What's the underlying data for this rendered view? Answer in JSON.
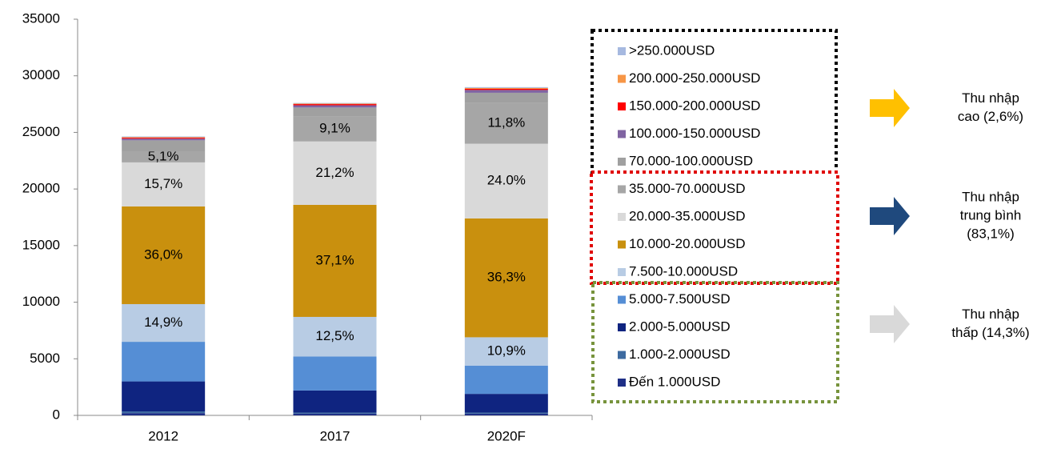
{
  "chart_data": {
    "type": "stacked_bar",
    "categories": [
      "2012",
      "2017",
      "2020F"
    ],
    "ylim": [
      0,
      35000
    ],
    "yticks": [
      0,
      5000,
      10000,
      15000,
      20000,
      25000,
      30000,
      35000
    ],
    "series": [
      {
        "name": "Đến 1.000USD",
        "color": "#1f2f86",
        "values": [
          200,
          150,
          150
        ]
      },
      {
        "name": "1.000-2.000USD",
        "color": "#3d6aa0",
        "values": [
          150,
          100,
          100
        ]
      },
      {
        "name": "2.000-5.000USD",
        "color": "#0f2480",
        "values": [
          2650,
          1950,
          1650
        ]
      },
      {
        "name": "5.000-7.500USD",
        "color": "#558ed5",
        "values": [
          3500,
          3000,
          2500
        ]
      },
      {
        "name": "7.500-10.000USD",
        "color": "#b8cce4",
        "values": [
          3330,
          3500,
          2500
        ],
        "labels": [
          "14,9%",
          "12,5%",
          "10,9%"
        ]
      },
      {
        "name": "10.000-20.000USD",
        "color": "#c9900e",
        "values": [
          8630,
          9900,
          10500
        ],
        "labels": [
          "36,0%",
          "37,1%",
          "36,3%"
        ]
      },
      {
        "name": "20.000-35.000USD",
        "color": "#d9d9d9",
        "values": [
          3890,
          5600,
          6600
        ],
        "labels": [
          "15,7%",
          "21,2%",
          "24.0%"
        ]
      },
      {
        "name": "35.000-70.000USD",
        "color": "#a6a6a6",
        "values": [
          950,
          2200,
          3600
        ],
        "labels": [
          "5,1%",
          "9,1%",
          "11,8%"
        ]
      },
      {
        "name": "70.000-100.000USD",
        "color": "#a0a0a0",
        "values": [
          1000,
          800,
          900
        ]
      },
      {
        "name": "100.000-150.000USD",
        "color": "#8064a2",
        "values": [
          150,
          200,
          250
        ]
      },
      {
        "name": "150.000-200.000USD",
        "color": "#ff0000",
        "values": [
          80,
          100,
          100
        ]
      },
      {
        "name": "200.000-250.000USD",
        "color": "#f79646",
        "values": [
          50,
          50,
          80
        ]
      },
      {
        "name": ">250.000USD",
        "color": "#a6b9e0",
        "values": [
          60,
          50,
          70
        ]
      }
    ],
    "groups": [
      {
        "lines": [
          "Thu nhập",
          "cao (2,6%)"
        ],
        "color": "#ffc000"
      },
      {
        "lines": [
          "Thu nhập",
          "trung bình",
          "(83,1%)"
        ],
        "color": "#1f497d"
      },
      {
        "lines": [
          "Thu nhập",
          "thấp (14,3%)"
        ],
        "color": "#d9d9d9"
      }
    ]
  }
}
